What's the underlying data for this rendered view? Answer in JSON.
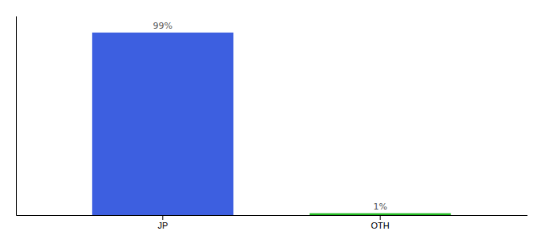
{
  "chart_data": {
    "type": "bar",
    "categories": [
      "JP",
      "OTH"
    ],
    "values": [
      99,
      1
    ],
    "colors": [
      "#3d5fe0",
      "#22bb22"
    ],
    "value_labels": [
      "99%",
      "1%"
    ],
    "data_labels": true,
    "ylim": [
      0,
      108
    ],
    "grid": false,
    "tick_labels": "x"
  }
}
